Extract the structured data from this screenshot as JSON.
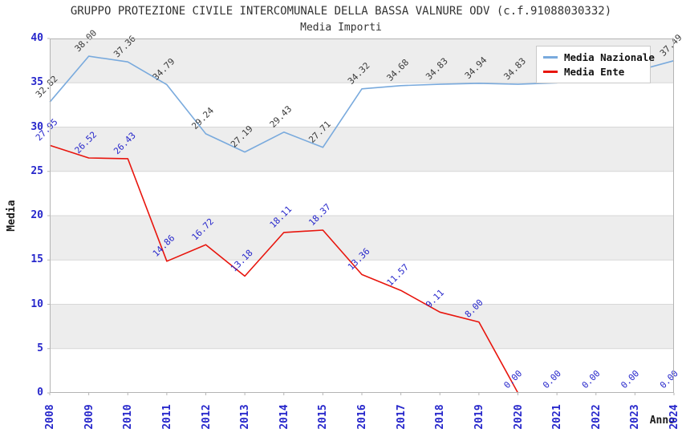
{
  "header": {
    "title": "GRUPPO PROTEZIONE CIVILE INTERCOMUNALE DELLA BASSA VALNURE ODV (c.f.91088030332)",
    "subtitle": "Media Importi"
  },
  "legend": {
    "items": [
      {
        "label": "Media Nazionale",
        "color": "#79aadd"
      },
      {
        "label": "Media Ente",
        "color": "#e8150d"
      }
    ]
  },
  "axes": {
    "y_label": "Media",
    "x_label": "Anno",
    "y_ticks": [
      "0",
      "5",
      "10",
      "15",
      "20",
      "25",
      "30",
      "35",
      "40"
    ],
    "x_ticks": [
      "2008",
      "2009",
      "2010",
      "2011",
      "2012",
      "2013",
      "2014",
      "2015",
      "2016",
      "2017",
      "2018",
      "2019",
      "2020",
      "2021",
      "2022",
      "2023",
      "2024"
    ],
    "tick_color": "#2727cb"
  },
  "chart_data": {
    "type": "line",
    "x": [
      2008,
      2009,
      2010,
      2011,
      2012,
      2013,
      2014,
      2015,
      2016,
      2017,
      2018,
      2019,
      2020,
      2021,
      2022,
      2023,
      2024
    ],
    "ylim": [
      0,
      40
    ],
    "grid": true,
    "band_colors": [
      "#ededed",
      "#ffffff"
    ],
    "grid_color": "#d7d7d7",
    "frame_color": "#b4b4b4",
    "legend_position": "upper right",
    "series": [
      {
        "name": "Media Nazionale",
        "color": "#79aadd",
        "label_color": "#3a3a3a",
        "values": [
          32.82,
          38.0,
          37.36,
          34.79,
          29.24,
          27.19,
          29.43,
          27.71,
          34.32,
          34.68,
          34.83,
          34.94,
          34.83,
          35.0,
          35.5,
          36.3,
          37.49
        ],
        "labels": [
          "32.82",
          "38.00",
          "37.36",
          "34.79",
          "29.24",
          "27.19",
          "29.43",
          "27.71",
          "34.32",
          "34.68",
          "34.83",
          "34.94",
          "34.83",
          null,
          null,
          null,
          "37.49"
        ],
        "hidden_label_indices": [
          13,
          14,
          15
        ],
        "draw_to_index": 16
      },
      {
        "name": "Media Ente",
        "color": "#e8150d",
        "label_color": "#2727cb",
        "values": [
          27.95,
          26.52,
          26.43,
          14.86,
          16.72,
          13.18,
          18.11,
          18.37,
          13.36,
          11.57,
          9.11,
          8.0,
          0.0,
          0.0,
          0.0,
          0.0,
          0.0
        ],
        "labels": [
          "27.95",
          "26.52",
          "26.43",
          "14.86",
          "16.72",
          "13.18",
          "18.11",
          "18.37",
          "13.36",
          "11.57",
          "9.11",
          "8.00",
          "0.00",
          "0.00",
          "0.00",
          "0.00",
          "0.00"
        ],
        "draw_to_index": 12
      }
    ]
  }
}
